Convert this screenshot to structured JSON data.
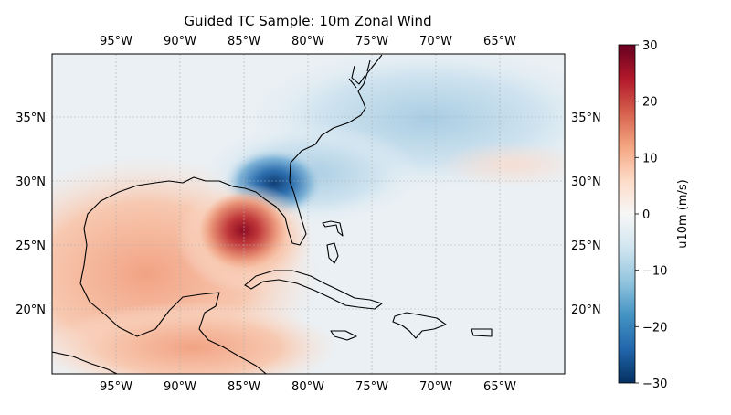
{
  "title": "Guided TC Sample: 10m Zonal Wind",
  "map": {
    "lon_ticks": [
      "95°W",
      "90°W",
      "85°W",
      "80°W",
      "75°W",
      "70°W",
      "65°W"
    ],
    "lat_ticks": [
      "35°N",
      "30°N",
      "25°N",
      "20°N"
    ],
    "extent": {
      "lon": [
        -100,
        -60
      ],
      "lat": [
        15,
        40
      ]
    }
  },
  "colorbar": {
    "label": "u10m (m/s)",
    "ticks": [
      "30",
      "20",
      "10",
      "0",
      "−10",
      "−20",
      "−30"
    ],
    "range": [
      -30,
      30
    ],
    "colormap": "RdBu_r",
    "colors": {
      "max": "#67001f",
      "mid": "#f7f7f7",
      "min": "#053061"
    }
  }
}
